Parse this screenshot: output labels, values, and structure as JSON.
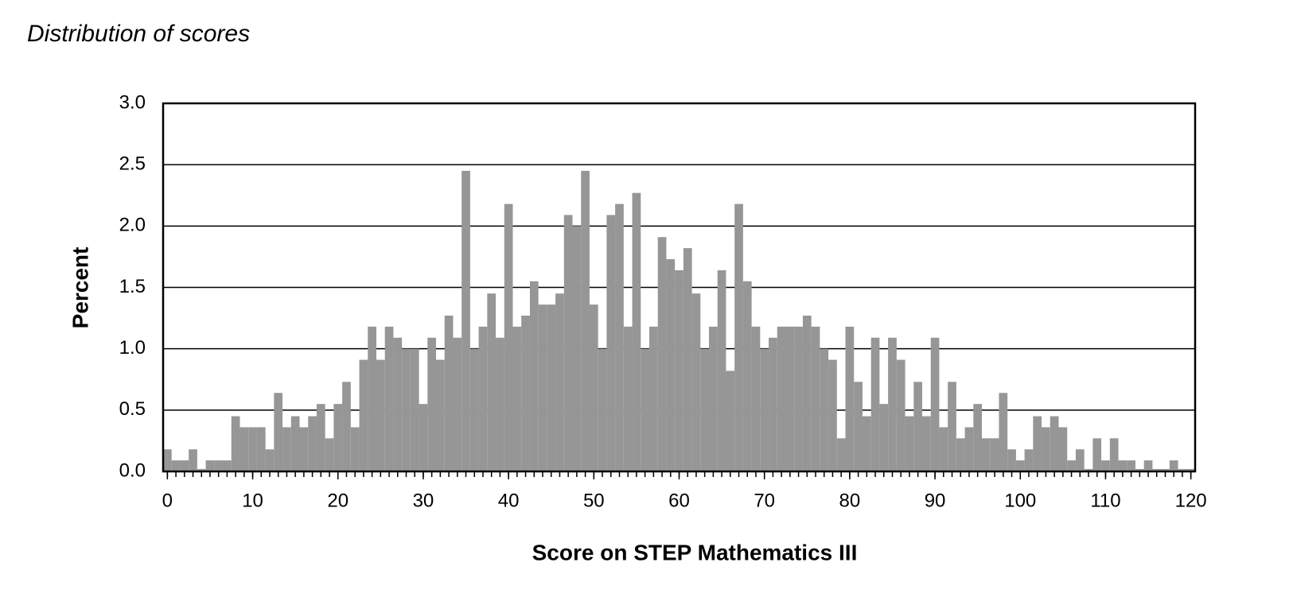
{
  "chart_data": {
    "type": "bar",
    "title": "Distribution of scores",
    "x_label": "Score on STEP Mathematics III",
    "y_label": "Percent",
    "x": [
      0,
      1,
      2,
      3,
      4,
      5,
      6,
      7,
      8,
      9,
      10,
      11,
      12,
      13,
      14,
      15,
      16,
      17,
      18,
      19,
      20,
      21,
      22,
      23,
      24,
      25,
      26,
      27,
      28,
      29,
      30,
      31,
      32,
      33,
      34,
      35,
      36,
      37,
      38,
      39,
      40,
      41,
      42,
      43,
      44,
      45,
      46,
      47,
      48,
      49,
      50,
      51,
      52,
      53,
      54,
      55,
      56,
      57,
      58,
      59,
      60,
      61,
      62,
      63,
      64,
      65,
      66,
      67,
      68,
      69,
      70,
      71,
      72,
      73,
      74,
      75,
      76,
      77,
      78,
      79,
      80,
      81,
      82,
      83,
      84,
      85,
      86,
      87,
      88,
      89,
      90,
      91,
      92,
      93,
      94,
      95,
      96,
      97,
      98,
      99,
      100,
      101,
      102,
      103,
      104,
      105,
      106,
      107,
      108,
      109,
      110,
      111,
      112,
      113,
      114,
      115,
      116,
      117,
      118,
      119,
      120
    ],
    "values": [
      0.18,
      0.09,
      0.09,
      0.18,
      0.02,
      0.09,
      0.09,
      0.09,
      0.45,
      0.36,
      0.36,
      0.36,
      0.18,
      0.64,
      0.36,
      0.45,
      0.36,
      0.45,
      0.55,
      0.27,
      0.55,
      0.73,
      0.36,
      0.91,
      1.18,
      0.91,
      1.18,
      1.09,
      1.0,
      1.0,
      0.55,
      1.09,
      0.91,
      1.27,
      1.09,
      2.45,
      1.0,
      1.18,
      1.45,
      1.09,
      2.18,
      1.18,
      1.27,
      1.55,
      1.36,
      1.36,
      1.45,
      2.09,
      2.0,
      2.45,
      1.36,
      1.0,
      2.09,
      2.18,
      1.18,
      2.27,
      1.0,
      1.18,
      1.91,
      1.73,
      1.64,
      1.82,
      1.45,
      1.0,
      1.18,
      1.64,
      0.82,
      2.18,
      1.55,
      1.18,
      1.0,
      1.09,
      1.18,
      1.18,
      1.18,
      1.27,
      1.18,
      1.0,
      0.91,
      0.27,
      1.18,
      0.73,
      0.45,
      1.09,
      0.55,
      1.09,
      0.91,
      0.45,
      0.73,
      0.45,
      1.09,
      0.36,
      0.73,
      0.27,
      0.36,
      0.55,
      0.27,
      0.27,
      0.64,
      0.18,
      0.09,
      0.18,
      0.45,
      0.36,
      0.45,
      0.36,
      0.09,
      0.18,
      0.02,
      0.27,
      0.09,
      0.27,
      0.09,
      0.09,
      0.02,
      0.09,
      0.02,
      0.02,
      0.09,
      0.02,
      0.02
    ],
    "color": "#969696",
    "xlim": [
      -0.5,
      120.5
    ],
    "xticks": [
      0,
      10,
      20,
      30,
      40,
      50,
      60,
      70,
      80,
      90,
      100,
      110,
      120
    ],
    "ylim": [
      0,
      3
    ],
    "yticks": [
      {
        "value": 0,
        "label": "0.0"
      },
      0.5,
      {
        "value": 1,
        "label": "1.0"
      },
      1.5,
      {
        "value": 2,
        "label": "2.0"
      },
      2.5,
      {
        "value": 3,
        "label": "3.0"
      }
    ],
    "grid": true
  }
}
